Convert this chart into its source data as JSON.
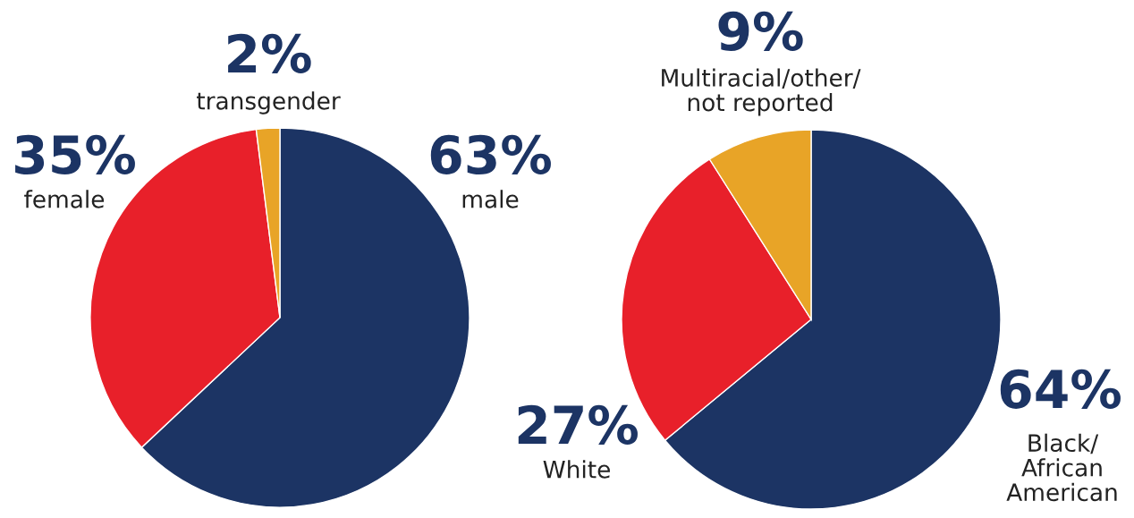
{
  "chart_data": [
    {
      "type": "pie",
      "categories": [
        "male",
        "female",
        "transgender"
      ],
      "values": [
        63,
        35,
        2
      ],
      "value_labels": [
        "63%",
        "35%",
        "2%"
      ],
      "colors": [
        "#1c3464",
        "#e8202a",
        "#e8a427"
      ]
    },
    {
      "type": "pie",
      "categories": [
        "Black/\nAfrican\nAmerican",
        "White",
        "Multiracial/other/\nnot reported"
      ],
      "values": [
        64,
        27,
        9
      ],
      "value_labels": [
        "64%",
        "27%",
        "9%"
      ],
      "colors": [
        "#1c3464",
        "#e8202a",
        "#e8a427"
      ]
    }
  ]
}
